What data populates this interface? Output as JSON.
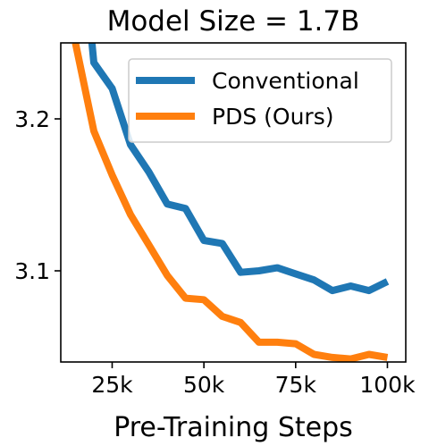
{
  "chart_data": {
    "type": "line",
    "title": "Model Size = 1.7B",
    "xlabel": "Pre-Training Steps",
    "ylabel": "",
    "xlim": [
      11000,
      105000
    ],
    "ylim": [
      3.04,
      3.25
    ],
    "x_ticks": [
      {
        "value": 25000,
        "label": "25k"
      },
      {
        "value": 50000,
        "label": "50k"
      },
      {
        "value": 75000,
        "label": "75k"
      },
      {
        "value": 100000,
        "label": "100k"
      }
    ],
    "y_ticks": [
      {
        "value": 3.1,
        "label": "3.1"
      },
      {
        "value": 3.2,
        "label": "3.2"
      }
    ],
    "grid": false,
    "legend_position": "top-right",
    "series": [
      {
        "name": "Conventional",
        "color": "#1f77b4",
        "x": [
          17500,
          20000,
          25000,
          30000,
          35000,
          40000,
          45000,
          50000,
          55000,
          60000,
          65000,
          70000,
          75000,
          80000,
          85000,
          90000,
          95000,
          100000
        ],
        "y": [
          3.3,
          3.237,
          3.22,
          3.183,
          3.165,
          3.144,
          3.141,
          3.12,
          3.118,
          3.099,
          3.1,
          3.102,
          3.098,
          3.094,
          3.087,
          3.09,
          3.087,
          3.093
        ]
      },
      {
        "name": "PDS (Ours)",
        "color": "#ff7f0e",
        "x": [
          15000,
          20000,
          25000,
          30000,
          35000,
          40000,
          45000,
          50000,
          55000,
          60000,
          65000,
          70000,
          75000,
          80000,
          85000,
          90000,
          95000,
          100000
        ],
        "y": [
          3.25,
          3.192,
          3.163,
          3.137,
          3.117,
          3.097,
          3.082,
          3.081,
          3.07,
          3.066,
          3.053,
          3.053,
          3.052,
          3.045,
          3.043,
          3.042,
          3.045,
          3.043
        ]
      }
    ]
  }
}
